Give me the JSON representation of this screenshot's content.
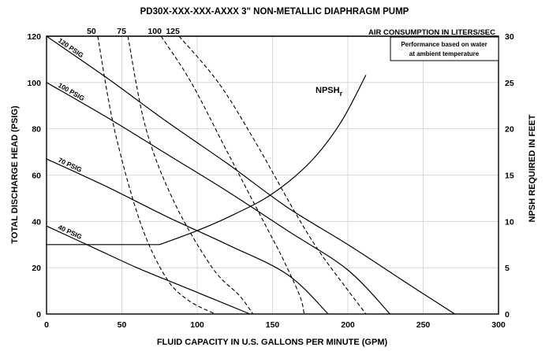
{
  "chart_data": {
    "type": "line",
    "title": "PD30X-XXX-XXX-AXXX 3\" NON-METALLIC DIAPHRAGM PUMP",
    "xlabel": "FLUID CAPACITY IN U.S. GALLONS PER MINUTE (GPM)",
    "ylabel": "TOTAL DISCHARGE HEAD (PSIG)",
    "y2label": "NPSH REQUIRED IN FEET",
    "xlim": [
      0,
      300
    ],
    "ylim": [
      0,
      120
    ],
    "y2lim": [
      0,
      30
    ],
    "x_ticks": [
      "0",
      "50",
      "100",
      "150",
      "200",
      "250",
      "300"
    ],
    "y_ticks": [
      "0",
      "20",
      "40",
      "60",
      "80",
      "100",
      "120"
    ],
    "y2_ticks": [
      "0",
      "5",
      "10",
      "15",
      "20",
      "25",
      "30"
    ],
    "grid": true,
    "note": [
      "Performance based on water",
      "at ambient temperature"
    ],
    "air_consumption": {
      "title": "AIR CONSUMPTION IN LITERS/SEC",
      "tick_labels": [
        "50",
        "75",
        "100",
        "125"
      ],
      "lines": [
        {
          "label": "50",
          "points": [
            [
              34,
              120
            ],
            [
              45,
              80
            ],
            [
              62,
              40
            ],
            [
              79,
              16
            ],
            [
              94,
              6
            ],
            [
              112,
              0
            ]
          ]
        },
        {
          "label": "75",
          "points": [
            [
              54,
              120
            ],
            [
              66,
              80
            ],
            [
              85,
              48
            ],
            [
              110,
              20
            ],
            [
              128,
              8
            ],
            [
              137,
              0
            ]
          ]
        },
        {
          "label": "100",
          "points": [
            [
              76,
              120
            ],
            [
              96,
              100
            ],
            [
              120,
              70
            ],
            [
              144,
              40
            ],
            [
              156,
              25
            ],
            [
              168,
              8
            ],
            [
              171,
              0
            ]
          ]
        },
        {
          "label": "125",
          "points": [
            [
              88,
              120
            ],
            [
              114,
              100
            ],
            [
              138,
              75
            ],
            [
              164,
              45
            ],
            [
              180,
              28
            ],
            [
              198,
              12
            ],
            [
              212,
              0
            ]
          ]
        }
      ]
    },
    "series": [
      {
        "name": "120 PSIG",
        "points": [
          [
            0,
            120
          ],
          [
            40,
            102
          ],
          [
            80,
            83
          ],
          [
            120,
            65
          ],
          [
            160,
            46
          ],
          [
            200,
            30
          ],
          [
            240,
            13
          ],
          [
            271,
            0
          ]
        ]
      },
      {
        "name": "100 PSIG",
        "points": [
          [
            0,
            100
          ],
          [
            40,
            85
          ],
          [
            80,
            69
          ],
          [
            120,
            53
          ],
          [
            160,
            36
          ],
          [
            200,
            19
          ],
          [
            228,
            0
          ]
        ]
      },
      {
        "name": "70 PSIG",
        "points": [
          [
            0,
            67
          ],
          [
            40,
            55
          ],
          [
            80,
            42
          ],
          [
            120,
            30
          ],
          [
            160,
            17
          ],
          [
            187,
            0
          ]
        ]
      },
      {
        "name": "40 PSIG",
        "points": [
          [
            0,
            38
          ],
          [
            30,
            29
          ],
          [
            60,
            20
          ],
          [
            90,
            12
          ],
          [
            120,
            4
          ],
          [
            135,
            0
          ]
        ]
      },
      {
        "name": "NPSH r",
        "axis": "y2",
        "points": [
          [
            0,
            7.5
          ],
          [
            75,
            7.5
          ],
          [
            100,
            9
          ],
          [
            125,
            10.8
          ],
          [
            150,
            13
          ],
          [
            175,
            16.4
          ],
          [
            195,
            20.6
          ],
          [
            212,
            25.8
          ]
        ]
      }
    ]
  }
}
